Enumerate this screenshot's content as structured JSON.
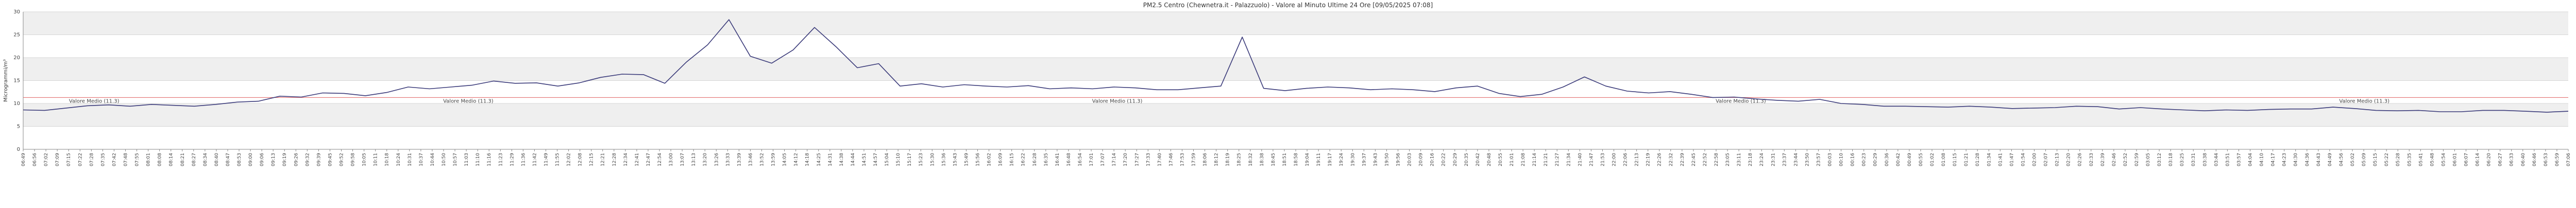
{
  "chart_data": {
    "type": "line",
    "title": "PM2.5 Centro (Chewnetra.it - Palazzuolo) - Valore al Minuto Ultime 24 Ore [09/05/2025 07:08]",
    "xlabel": "",
    "ylabel": "Microgrammi/m³",
    "ylim": [
      0,
      30
    ],
    "yticks": [
      0,
      5,
      10,
      15,
      20,
      25,
      30
    ],
    "grid": true,
    "bands": true,
    "series": [
      {
        "name": "",
        "color": "#3b3b7a",
        "x": [
          0,
          12,
          24,
          36,
          48,
          60,
          72,
          84,
          96,
          108,
          120,
          132,
          144,
          156,
          168,
          180,
          192,
          204,
          216,
          228,
          240,
          252,
          264,
          276,
          288,
          300,
          312,
          324,
          336,
          348,
          360,
          372,
          384,
          396,
          408,
          420,
          432,
          444,
          456,
          468,
          480,
          492,
          504,
          516,
          528,
          540,
          552,
          564,
          576,
          588,
          600,
          612,
          624,
          636,
          648,
          660,
          672,
          684,
          696,
          708,
          720,
          732,
          744,
          756,
          768,
          780,
          792,
          804,
          816,
          828,
          840,
          852,
          864,
          876,
          888,
          900,
          912,
          924,
          936,
          948,
          960,
          972,
          984,
          996,
          1008,
          1020,
          1032,
          1044,
          1056,
          1068,
          1080,
          1092,
          1104,
          1116,
          1128,
          1140,
          1152,
          1164,
          1176,
          1188,
          1200,
          1212,
          1224,
          1236,
          1248,
          1260,
          1272,
          1284,
          1296,
          1308,
          1320,
          1332,
          1344,
          1356,
          1368,
          1380,
          1392,
          1404,
          1416,
          1428
        ],
        "values": [
          8.6,
          8.5,
          9.0,
          9.5,
          9.7,
          9.4,
          9.8,
          9.6,
          9.4,
          9.8,
          10.3,
          10.5,
          11.6,
          11.4,
          12.3,
          12.2,
          11.7,
          12.4,
          13.6,
          13.2,
          13.6,
          14.0,
          14.9,
          14.4,
          14.5,
          13.8,
          14.5,
          15.7,
          16.4,
          16.3,
          14.4,
          19.0,
          22.8,
          28.3,
          20.3,
          18.8,
          21.7,
          26.6,
          22.4,
          17.8,
          18.7,
          13.8,
          14.3,
          13.6,
          14.1,
          13.8,
          13.6,
          13.9,
          13.2,
          13.4,
          13.2,
          13.6,
          13.4,
          13.0,
          13.0,
          13.4,
          13.8,
          24.5,
          13.3,
          12.8,
          13.3,
          13.6,
          13.4,
          13.0,
          13.2,
          13.0,
          12.6,
          13.4,
          13.8,
          12.2,
          11.5,
          12.0,
          13.6,
          15.8,
          13.8,
          12.7,
          12.3,
          12.6,
          12.0,
          11.3,
          11.4,
          11.0,
          10.7,
          10.5,
          10.9,
          10.0,
          9.8,
          9.4,
          9.4,
          9.3,
          9.2,
          9.4,
          9.2,
          8.9,
          9.0,
          9.1,
          9.4,
          9.3,
          8.8,
          9.1,
          8.8,
          8.6,
          8.4,
          8.6,
          8.5,
          8.7,
          8.8,
          8.8,
          9.2,
          8.9,
          8.5,
          8.4,
          8.5,
          8.2,
          8.2,
          8.5,
          8.5,
          8.3,
          8.1,
          8.3
        ],
        "mean": 11.3
      }
    ],
    "mean_label": "Valore Medio (11.3)",
    "x_tick_labels": [
      "06:49",
      "06:56",
      "07:02",
      "07:09",
      "07:15",
      "07:22",
      "07:28",
      "07:35",
      "07:42",
      "07:48",
      "07:55",
      "08:01",
      "08:08",
      "08:14",
      "08:21",
      "08:27",
      "08:34",
      "08:40",
      "08:47",
      "08:53",
      "09:00",
      "09:06",
      "09:13",
      "09:19",
      "09:26",
      "09:32",
      "09:39",
      "09:45",
      "09:52",
      "09:58",
      "10:05",
      "10:11",
      "10:18",
      "10:24",
      "10:31",
      "10:37",
      "10:44",
      "10:50",
      "10:57",
      "11:03",
      "11:10",
      "11:16",
      "11:23",
      "11:29",
      "11:36",
      "11:42",
      "11:49",
      "11:55",
      "12:02",
      "12:08",
      "12:15",
      "12:21",
      "12:28",
      "12:34",
      "12:41",
      "12:47",
      "12:54",
      "13:00",
      "13:07",
      "13:13",
      "13:20",
      "13:26",
      "13:33",
      "13:39",
      "13:46",
      "13:52",
      "13:59",
      "14:05",
      "14:12",
      "14:18",
      "14:25",
      "14:31",
      "14:38",
      "14:44",
      "14:51",
      "14:57",
      "15:04",
      "15:10",
      "15:17",
      "15:23",
      "15:30",
      "15:36",
      "15:43",
      "15:49",
      "15:56",
      "16:02",
      "16:09",
      "16:15",
      "16:22",
      "16:28",
      "16:35",
      "16:41",
      "16:48",
      "16:54",
      "17:01",
      "17:07",
      "17:14",
      "17:20",
      "17:27",
      "17:33",
      "17:40",
      "17:46",
      "17:53",
      "17:59",
      "18:06",
      "18:12",
      "18:19",
      "18:25",
      "18:32",
      "18:38",
      "18:45",
      "18:51",
      "18:58",
      "19:04",
      "19:11",
      "19:17",
      "19:24",
      "19:30",
      "19:37",
      "19:43",
      "19:50",
      "19:56",
      "20:03",
      "20:09",
      "20:16",
      "20:22",
      "20:29",
      "20:35",
      "20:42",
      "20:48",
      "20:55",
      "21:01",
      "21:08",
      "21:14",
      "21:21",
      "21:27",
      "21:34",
      "21:40",
      "21:47",
      "21:53",
      "22:00",
      "22:06",
      "22:13",
      "22:19",
      "22:26",
      "22:32",
      "22:39",
      "22:45",
      "22:52",
      "22:58",
      "23:05",
      "23:11",
      "23:18",
      "23:24",
      "23:31",
      "23:37",
      "23:44",
      "23:50",
      "23:57",
      "00:03",
      "00:10",
      "00:16",
      "00:23",
      "00:29",
      "00:36",
      "00:42",
      "00:49",
      "00:55",
      "01:02",
      "01:08",
      "01:15",
      "01:21",
      "01:28",
      "01:34",
      "01:41",
      "01:47",
      "01:54",
      "02:00",
      "02:07",
      "02:13",
      "02:20",
      "02:26",
      "02:33",
      "02:39",
      "02:46",
      "02:52",
      "02:59",
      "03:05",
      "03:12",
      "03:18",
      "03:25",
      "03:31",
      "03:38",
      "03:44",
      "03:51",
      "03:57",
      "04:04",
      "04:10",
      "04:17",
      "04:23",
      "04:30",
      "04:36",
      "04:43",
      "04:49",
      "04:56",
      "05:02",
      "05:09",
      "05:15",
      "05:22",
      "05:28",
      "05:35",
      "05:41",
      "05:48",
      "05:54",
      "06:01",
      "06:07",
      "06:14",
      "06:20",
      "06:27",
      "06:33",
      "06:40",
      "06:46",
      "06:53",
      "06:59",
      "07:06"
    ]
  }
}
